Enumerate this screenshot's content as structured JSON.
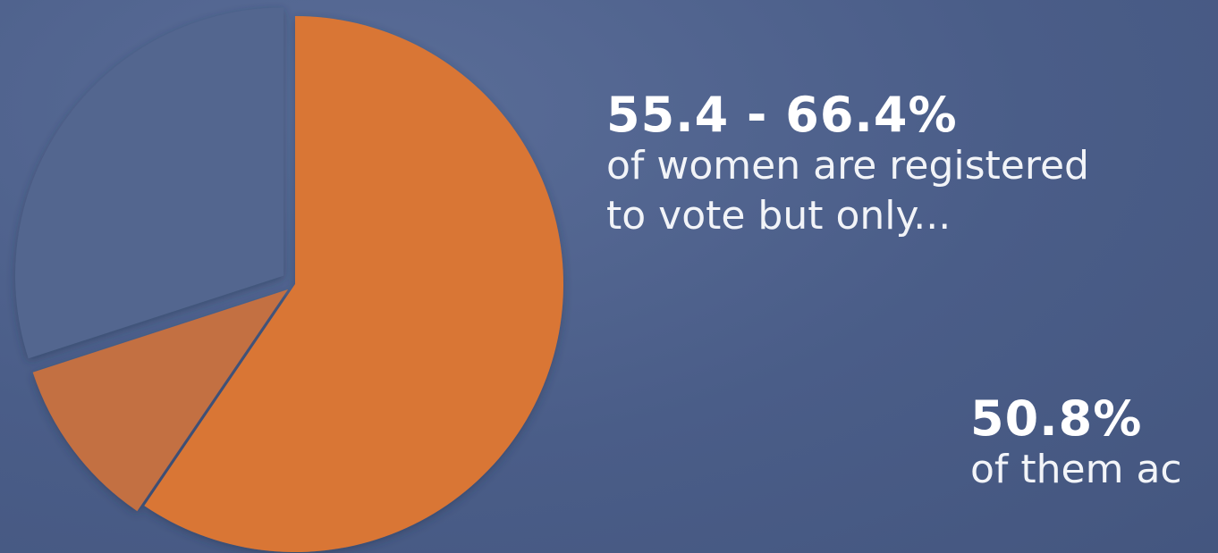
{
  "chart_data": {
    "type": "pie",
    "slices": [
      {
        "value": 59.5,
        "color": "#d97635"
      },
      {
        "value": 10.5,
        "color": "#c36f42"
      },
      {
        "value": 30.0,
        "color": "#53668f"
      }
    ]
  },
  "stats": [
    {
      "value": "55.4 - 66.4%",
      "caption_lines": [
        "of women are registered",
        "to vote but only..."
      ]
    },
    {
      "value": "50.8%",
      "caption_lines": [
        "of them ac"
      ]
    }
  ],
  "colors": {
    "background": "#4a5d88",
    "accent": "#d97635"
  }
}
